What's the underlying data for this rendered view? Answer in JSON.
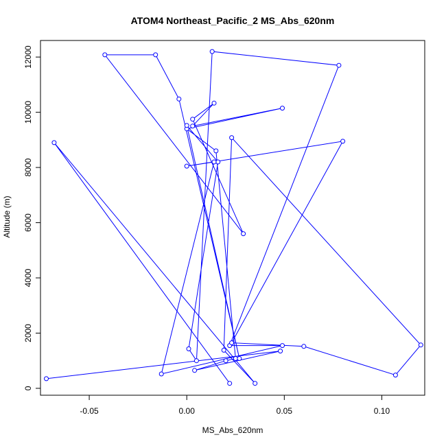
{
  "chart_data": {
    "type": "line",
    "title": "ATOM4 Northeast_Pacific_2 MS_Abs_620nm",
    "xlabel": "MS_Abs_620nm",
    "ylabel": "Altitude (m)",
    "xlim": [
      -0.075,
      0.122
    ],
    "ylim": [
      -250,
      12600
    ],
    "xticks": [
      -0.05,
      0.0,
      0.05,
      0.1
    ],
    "xtick_labels": [
      "-0.05",
      "0.00",
      "0.05",
      "0.10"
    ],
    "yticks": [
      0,
      2000,
      4000,
      6000,
      8000,
      10000,
      12000
    ],
    "ytick_labels": [
      "0",
      "2000",
      "4000",
      "6000",
      "8000",
      "10000",
      "12000"
    ],
    "grid": false,
    "line_color": "#0000ff",
    "marker": "open-circle",
    "series": [
      {
        "x": [
          -0.072,
          0.048,
          0.004,
          0.02,
          0.025,
          0.015,
          0.0,
          0.049,
          0.003,
          0.014,
          0.003,
          0.029,
          -0.042,
          -0.016,
          -0.004,
          0.027,
          0.0,
          0.016,
          0.001,
          0.005,
          0.013,
          0.078,
          0.022,
          0.049,
          -0.013,
          0.014,
          0.0,
          0.08,
          0.023,
          0.06,
          0.107,
          0.12,
          0.023,
          0.019,
          0.035,
          -0.068,
          0.022
        ],
        "y": [
          350,
          1350,
          650,
          1000,
          1080,
          8600,
          9400,
          10150,
          9500,
          10330,
          9750,
          5600,
          12080,
          12080,
          10480,
          1080,
          9520,
          8200,
          1430,
          1000,
          12200,
          11700,
          1550,
          1550,
          520,
          8200,
          8050,
          8950,
          1650,
          1520,
          480,
          1570,
          9080,
          1380,
          180,
          8900,
          180
        ]
      }
    ]
  }
}
